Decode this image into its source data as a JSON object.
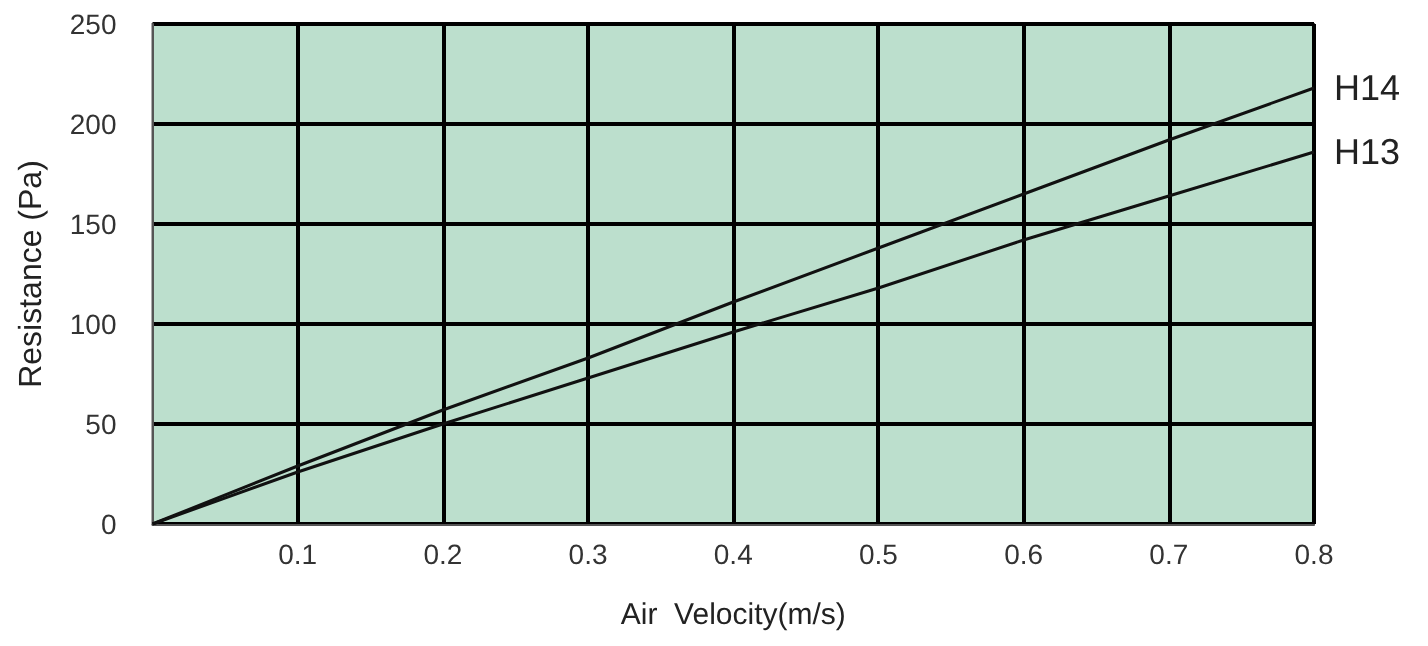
{
  "chart_data": {
    "type": "line",
    "xlabel": "Air  Velocity(m/s)",
    "ylabel": "Resistance (Pa)",
    "x": [
      0,
      0.1,
      0.2,
      0.3,
      0.4,
      0.5,
      0.6,
      0.7,
      0.8
    ],
    "series": [
      {
        "name": "H14",
        "color": "#111111",
        "values": [
          0,
          29,
          57,
          83,
          111,
          138,
          165,
          192,
          218
        ]
      },
      {
        "name": "H13",
        "color": "#111111",
        "values": [
          0,
          26,
          50,
          73,
          96,
          118,
          142,
          164,
          186
        ]
      }
    ],
    "xlim": [
      0,
      0.8
    ],
    "xticks": [
      0.1,
      0.2,
      0.3,
      0.4,
      0.5,
      0.6,
      0.7,
      0.8
    ],
    "ylim": [
      0,
      250
    ],
    "yticks": [
      0,
      50,
      100,
      150,
      200,
      250
    ],
    "grid": true,
    "marker": "none",
    "line_style": "solid",
    "legend": false
  }
}
